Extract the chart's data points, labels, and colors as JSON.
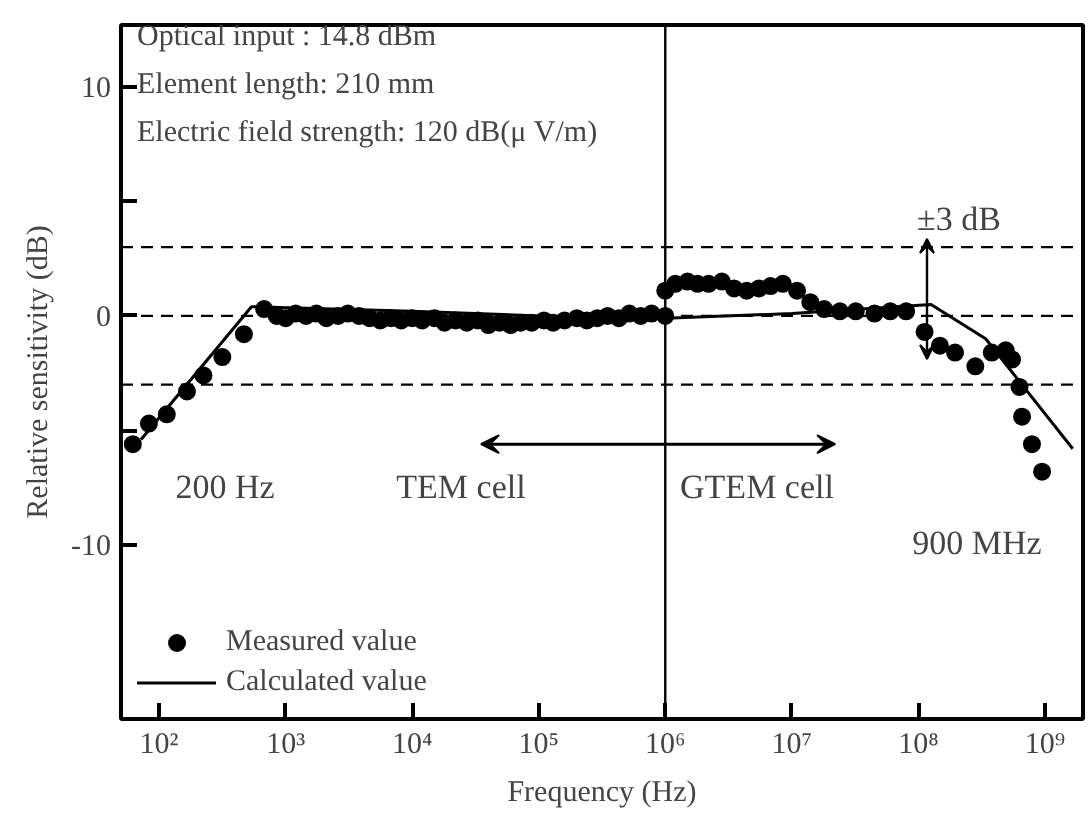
{
  "chart_data": {
    "type": "scatter",
    "xlabel": "Frequency (Hz)",
    "ylabel": "Relative sensitivity (dB)",
    "log": "x",
    "xlim": [
      50,
      2000000000
    ],
    "ylim": [
      -17.6,
      12.7
    ],
    "xticks": [
      {
        "value": 100,
        "label": "10²"
      },
      {
        "value": 1000,
        "label": "10³"
      },
      {
        "value": 10000,
        "label": "10⁴"
      },
      {
        "value": 100000,
        "label": "10⁵"
      },
      {
        "value": 1000000,
        "label": "10⁶"
      },
      {
        "value": 10000000,
        "label": "10⁷"
      },
      {
        "value": 100000000,
        "label": "10⁸"
      },
      {
        "value": 1000000000,
        "label": "10⁹"
      }
    ],
    "yticks": [
      10,
      {
        "value": 5,
        "label": null
      },
      0,
      {
        "value": -5,
        "label": null
      },
      -10
    ],
    "grid": false,
    "legend": "bottom left",
    "ref_lines": [
      {
        "axis": "y",
        "value": 3,
        "label": null,
        "line_style": "dashed"
      },
      {
        "axis": "y",
        "value": 0,
        "label": null,
        "line_style": "dashed"
      },
      {
        "axis": "y",
        "value": -3,
        "label": null,
        "line_style": "dashed"
      },
      {
        "axis": "x",
        "value": 1000000,
        "label": null,
        "line_style": "solid"
      }
    ],
    "annotations": [
      "Optical input : 14.8 dBm",
      "Element length: 210 mm",
      "Electric field strength: 120 dB(μ V/m)",
      "±3 dB",
      "200 Hz",
      "TEM cell",
      "GTEM cell",
      "900 MHz"
    ],
    "series": [
      {
        "name": "Measured value",
        "marker": "circle",
        "color": "#000000",
        "x": [
          62,
          83,
          115,
          166,
          224,
          316,
          468,
          676,
          850,
          1000,
          1200,
          1450,
          1750,
          2100,
          2600,
          3100,
          3800,
          4600,
          5600,
          6800,
          8200,
          10000,
          12000,
          15000,
          18000,
          22000,
          27000,
          33000,
          40000,
          49000,
          60000,
          72000,
          88000,
          110000,
          130000,
          160000,
          200000,
          240000,
          290000,
          350000,
          430000,
          520000,
          640000,
          780000,
          1000000,
          1000000,
          1200000,
          1500000,
          1800000,
          2200000,
          2800000,
          3500000,
          4400000,
          5500000,
          6800000,
          8500000,
          11000000,
          14000000,
          18000000,
          24000000,
          32000000,
          45000000,
          60000000,
          80000000,
          112000000,
          148000000,
          195000000,
          282000000,
          380000000,
          490000000,
          550000000,
          630000000,
          660000000,
          790000000,
          950000000
        ],
        "values": [
          -5.6,
          -4.7,
          -4.3,
          -3.3,
          -2.6,
          -1.8,
          -0.8,
          0.3,
          0.0,
          -0.1,
          0.1,
          0.0,
          0.1,
          -0.1,
          0.0,
          0.1,
          0.0,
          -0.1,
          -0.2,
          -0.1,
          -0.2,
          -0.1,
          -0.2,
          -0.1,
          -0.3,
          -0.2,
          -0.3,
          -0.2,
          -0.4,
          -0.3,
          -0.4,
          -0.3,
          -0.3,
          -0.2,
          -0.3,
          -0.2,
          -0.1,
          -0.2,
          -0.1,
          0.0,
          -0.1,
          0.1,
          0.0,
          0.1,
          0.0,
          1.1,
          1.4,
          1.5,
          1.4,
          1.4,
          1.5,
          1.2,
          1.1,
          1.2,
          1.3,
          1.4,
          1.1,
          0.6,
          0.3,
          0.2,
          0.2,
          0.1,
          0.2,
          0.2,
          -0.7,
          -1.3,
          -1.6,
          -2.2,
          -1.6,
          -1.5,
          -1.9,
          -3.1,
          -4.4,
          -5.6,
          -6.8
        ]
      },
      {
        "name": "Calculated value",
        "type": "line",
        "color": "#000000",
        "line_style": "solid",
        "x": [
          72,
          537,
          10000,
          100000,
          1000000,
          10000000,
          126000000,
          340000000,
          1660000000
        ],
        "values": [
          -5.4,
          0.4,
          0.2,
          0.0,
          -0.1,
          0.1,
          0.5,
          -1.0,
          -5.8
        ]
      }
    ]
  }
}
